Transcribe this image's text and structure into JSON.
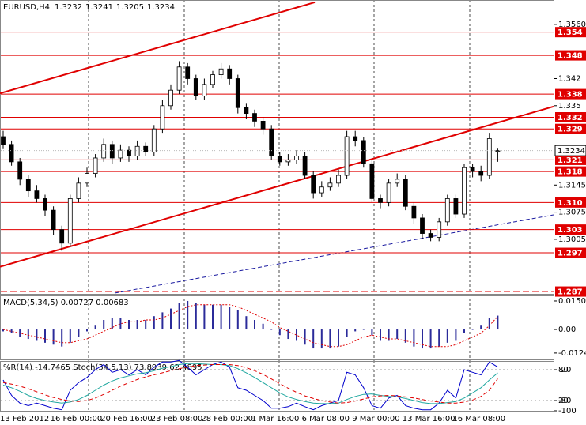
{
  "chart_data": [
    {
      "type": "candlestick",
      "title": "EURUSD,H4",
      "ohlc": [
        1.3232,
        1.3241,
        1.3205,
        1.3234
      ],
      "categories": [
        "13 Feb 2012",
        null,
        null,
        null,
        null,
        null,
        "16 Feb 00:00",
        null,
        null,
        null,
        null,
        null,
        "20 Feb 16:00",
        null,
        null,
        null,
        null,
        null,
        "23 Feb 08:00",
        null,
        null,
        null,
        null,
        null,
        "28 Feb 00:00",
        null,
        null,
        null,
        null,
        null,
        "1 Mar 16:00",
        null,
        null,
        null,
        null,
        null,
        "6 Mar 08:00",
        null,
        null,
        null,
        null,
        null,
        "9 Mar 00:00",
        null,
        null,
        null,
        null,
        null,
        "13 Mar 16:00",
        null,
        null,
        null,
        null,
        null,
        "16 Mar 08:00",
        null,
        null,
        null,
        null,
        null
      ],
      "open": [
        1.327,
        1.325,
        1.3205,
        1.316,
        1.313,
        1.311,
        1.308,
        1.303,
        1.2995,
        1.311,
        1.315,
        1.3175,
        1.3215,
        1.325,
        1.3215,
        1.3235,
        1.322,
        1.3245,
        1.323,
        1.329,
        1.335,
        1.339,
        1.345,
        1.342,
        1.3375,
        1.3405,
        1.343,
        1.3445,
        1.342,
        1.3345,
        1.333,
        1.331,
        1.329,
        1.322,
        1.3205,
        1.321,
        1.322,
        1.317,
        1.3125,
        1.314,
        1.315,
        1.317,
        1.327,
        1.326,
        1.32,
        1.311,
        1.31,
        1.315,
        1.316,
        1.309,
        1.306,
        1.302,
        1.301,
        1.305,
        1.311,
        1.307,
        1.319,
        1.318,
        1.317,
        1.3232
      ],
      "high": [
        1.3285,
        1.326,
        1.3215,
        1.317,
        1.3145,
        1.312,
        1.309,
        1.304,
        1.312,
        1.3165,
        1.319,
        1.3225,
        1.3265,
        1.326,
        1.325,
        1.3245,
        1.326,
        1.3255,
        1.33,
        1.3365,
        1.3405,
        1.3465,
        1.346,
        1.343,
        1.342,
        1.344,
        1.346,
        1.3455,
        1.343,
        1.3355,
        1.334,
        1.332,
        1.33,
        1.323,
        1.3225,
        1.3235,
        1.323,
        1.318,
        1.3155,
        1.3165,
        1.3185,
        1.3285,
        1.3285,
        1.327,
        1.321,
        1.312,
        1.316,
        1.3175,
        1.317,
        1.31,
        1.307,
        1.303,
        1.306,
        1.312,
        1.312,
        1.32,
        1.32,
        1.3195,
        1.328,
        1.3241
      ],
      "low": [
        1.324,
        1.3195,
        1.3145,
        1.3115,
        1.31,
        1.3065,
        1.3015,
        1.2975,
        1.2985,
        1.31,
        1.314,
        1.3165,
        1.3205,
        1.32,
        1.3205,
        1.3205,
        1.321,
        1.322,
        1.322,
        1.328,
        1.334,
        1.338,
        1.3405,
        1.3365,
        1.3365,
        1.3395,
        1.342,
        1.3405,
        1.333,
        1.3315,
        1.3295,
        1.3275,
        1.321,
        1.3195,
        1.3195,
        1.32,
        1.316,
        1.311,
        1.3115,
        1.313,
        1.314,
        1.316,
        1.3245,
        1.319,
        1.31,
        1.3085,
        1.309,
        1.314,
        1.308,
        1.3045,
        1.3005,
        1.3,
        1.3,
        1.304,
        1.306,
        1.306,
        1.3165,
        1.3155,
        1.316,
        1.3205
      ],
      "close": [
        1.325,
        1.3205,
        1.316,
        1.313,
        1.311,
        1.308,
        1.303,
        1.2995,
        1.311,
        1.315,
        1.3175,
        1.3215,
        1.325,
        1.3215,
        1.3235,
        1.322,
        1.3245,
        1.323,
        1.329,
        1.335,
        1.339,
        1.345,
        1.342,
        1.3375,
        1.3405,
        1.343,
        1.3445,
        1.342,
        1.3345,
        1.333,
        1.331,
        1.329,
        1.322,
        1.3205,
        1.321,
        1.322,
        1.317,
        1.3125,
        1.314,
        1.315,
        1.317,
        1.327,
        1.326,
        1.32,
        1.311,
        1.31,
        1.315,
        1.316,
        1.309,
        1.306,
        1.302,
        1.301,
        1.305,
        1.311,
        1.307,
        1.319,
        1.318,
        1.317,
        1.3265,
        1.3234
      ],
      "ylim": [
        1.2864,
        1.3623
      ],
      "yticks": [
        {
          "value": 1.356,
          "label": "1.3560"
        },
        1.342,
        1.335,
        1.3145,
        1.3075,
        1.3005
      ],
      "levels": [
        1.354,
        1.348,
        1.338,
        1.332,
        1.329,
        1.321,
        1.318,
        {
          "value": 1.31,
          "label": "1.310"
        },
        1.303,
        1.297
      ],
      "dashed_levels": [
        1.287
      ],
      "level_color": "#e00000",
      "last_price": 1.3234,
      "trendlines": [
        {
          "color": "#e00000",
          "style": "solid",
          "x": [
            -0.38,
            37.17
          ],
          "values": [
            1.3382,
            1.3617
          ]
        },
        {
          "color": "#e00000",
          "style": "solid",
          "x": [
            -0.38,
            65.66
          ],
          "values": [
            1.2934,
            1.3348
          ]
        },
        {
          "color": "#1a1aa0",
          "style": "dashed",
          "x": [
            13.3,
            65.66
          ],
          "values": [
            1.2866,
            1.3068
          ]
        }
      ]
    },
    {
      "type": "bar",
      "title": "MACD(5,34,5) 0.00727 0.00683",
      "ylim": [
        -0.0158,
        0.0179
      ],
      "yticks": [
        {
          "value": 0.015,
          "label": "0.01500"
        },
        {
          "value": 0,
          "label": "0.00"
        },
        {
          "value": -0.01243,
          "label": "-0.01243"
        }
      ],
      "series": [
        {
          "style": "bar",
          "color": "#2b2b9a",
          "values": [
            -0.001,
            -0.002,
            -0.004,
            -0.005,
            -0.006,
            -0.007,
            -0.008,
            -0.009,
            -0.007,
            -0.004,
            -0.001,
            0.002,
            0.005,
            0.006,
            0.006,
            0.005,
            0.005,
            0.005,
            0.007,
            0.009,
            0.011,
            0.014,
            0.015,
            0.014,
            0.013,
            0.013,
            0.013,
            0.012,
            0.01,
            0.007,
            0.005,
            0.003,
            0.0,
            -0.003,
            -0.005,
            -0.006,
            -0.008,
            -0.01,
            -0.01,
            -0.01,
            -0.009,
            -0.004,
            -0.001,
            0.0,
            -0.003,
            -0.006,
            -0.006,
            -0.005,
            -0.007,
            -0.009,
            -0.01,
            -0.01,
            -0.009,
            -0.007,
            -0.006,
            -0.002,
            0.0,
            0.002,
            0.006,
            0.00727
          ]
        },
        {
          "style": "dotted",
          "color": "#e00000",
          "values": [
            0.0,
            -0.001,
            -0.002,
            -0.003,
            -0.004,
            -0.005,
            -0.006,
            -0.007,
            -0.007,
            -0.006,
            -0.005,
            -0.003,
            -0.001,
            0.001,
            0.003,
            0.004,
            0.004,
            0.005,
            0.005,
            0.006,
            0.008,
            0.01,
            0.012,
            0.013,
            0.013,
            0.013,
            0.013,
            0.013,
            0.012,
            0.01,
            0.008,
            0.006,
            0.004,
            0.001,
            -0.001,
            -0.003,
            -0.005,
            -0.007,
            -0.008,
            -0.009,
            -0.009,
            -0.008,
            -0.006,
            -0.004,
            -0.003,
            -0.004,
            -0.005,
            -0.005,
            -0.006,
            -0.007,
            -0.008,
            -0.009,
            -0.009,
            -0.009,
            -0.008,
            -0.006,
            -0.004,
            -0.002,
            0.002,
            0.00683
          ]
        }
      ]
    },
    {
      "type": "line",
      "title": "%R(14) -14.7465  Stoch(34,5,13) 73.8939 62.4895",
      "ylim": [
        0,
        100
      ],
      "yticks": [
        80,
        20
      ],
      "grid": true,
      "y2lim": [
        -100,
        0
      ],
      "y2ticks": [
        -20,
        -80,
        -100
      ],
      "series": [
        {
          "style": "solid",
          "color": "#0000cc",
          "axis": "y2",
          "values": [
            -40,
            -70,
            -85,
            -90,
            -85,
            -90,
            -95,
            -98,
            -60,
            -45,
            -35,
            -20,
            -10,
            -25,
            -20,
            -30,
            -20,
            -30,
            -15,
            -5,
            -5,
            -2,
            -15,
            -30,
            -20,
            -10,
            -5,
            -15,
            -55,
            -60,
            -70,
            -80,
            -95,
            -95,
            -92,
            -85,
            -92,
            -98,
            -90,
            -85,
            -80,
            -25,
            -30,
            -55,
            -90,
            -95,
            -75,
            -70,
            -90,
            -95,
            -98,
            -98,
            -85,
            -60,
            -75,
            -20,
            -25,
            -30,
            -5,
            -14.7465
          ]
        },
        {
          "style": "solid",
          "color": "#20a8a0",
          "values": [
            50,
            45,
            38,
            30,
            24,
            20,
            17,
            15,
            17,
            22,
            30,
            40,
            50,
            58,
            64,
            68,
            72,
            74,
            78,
            83,
            86,
            90,
            92,
            92,
            91,
            90,
            90,
            88,
            82,
            74,
            65,
            55,
            45,
            35,
            27,
            22,
            18,
            15,
            14,
            14,
            15,
            22,
            28,
            32,
            33,
            30,
            28,
            27,
            24,
            20,
            16,
            14,
            14,
            16,
            18,
            25,
            35,
            45,
            60,
            73.8939
          ]
        },
        {
          "style": "dashed",
          "color": "#e00000",
          "values": [
            55,
            52,
            48,
            43,
            37,
            31,
            26,
            22,
            19,
            18,
            20,
            25,
            32,
            40,
            48,
            55,
            61,
            66,
            70,
            74,
            78,
            82,
            85,
            88,
            89,
            90,
            90,
            90,
            88,
            84,
            78,
            71,
            62,
            53,
            44,
            36,
            29,
            24,
            20,
            17,
            15,
            16,
            19,
            23,
            27,
            29,
            30,
            29,
            27,
            25,
            22,
            19,
            17,
            15,
            15,
            17,
            21,
            28,
            40,
            62.4895
          ]
        }
      ]
    }
  ]
}
